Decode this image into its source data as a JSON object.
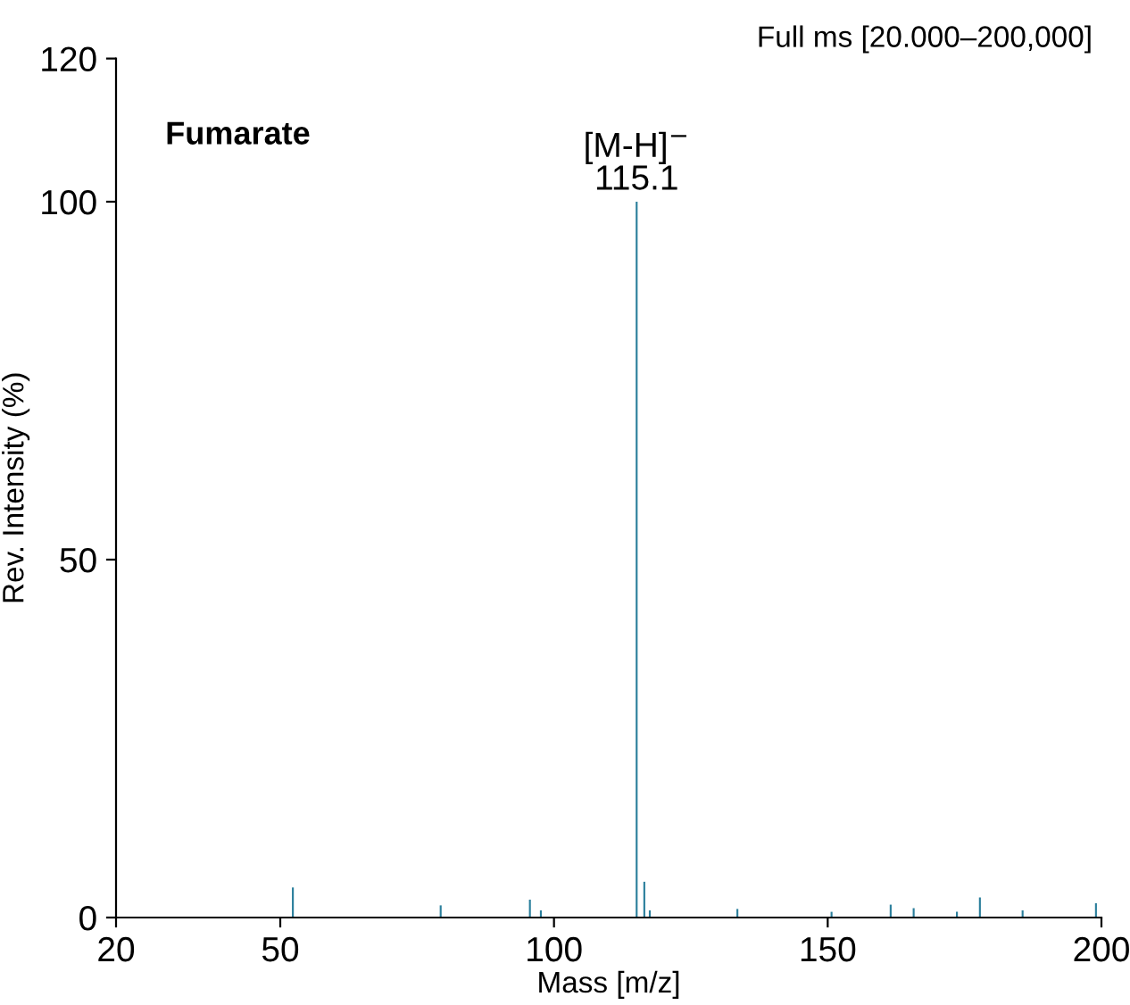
{
  "chart_data": {
    "type": "bar",
    "title": "Full ms [20.000–200,000]",
    "xlabel": "Mass [m/z]",
    "ylabel": "Rev. Intensity (%)",
    "x": [
      52.3,
      79.3,
      95.6,
      97.6,
      115.1,
      116.5,
      117.5,
      133.5,
      150.7,
      161.5,
      165.7,
      173.6,
      177.8,
      185.6,
      199
    ],
    "series": [
      {
        "color": "#2b7f9c",
        "values": [
          4.2,
          1.7,
          2.5,
          1,
          100,
          5,
          1,
          1.2,
          0.8,
          1.8,
          1.3,
          0.8,
          2.8,
          1,
          2
        ]
      }
    ],
    "xlim": [
      20,
      200
    ],
    "xticks": [
      20,
      50,
      100,
      150,
      200
    ],
    "ylim": [
      0,
      120
    ],
    "yticks": [
      0,
      50,
      100,
      120
    ],
    "annotations": [
      "Fumarate",
      {
        "text": "[M-H]$^{−}$\n115.1",
        "x": 115.1,
        "y": 100
      }
    ],
    "grid": false,
    "legend": false
  }
}
